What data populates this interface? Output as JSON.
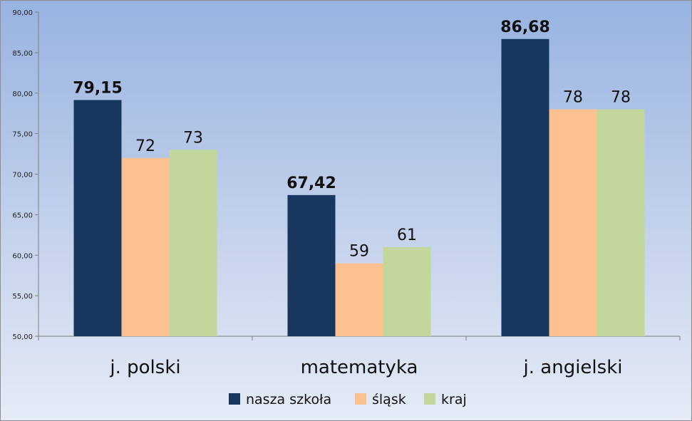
{
  "chart_data": {
    "type": "bar",
    "categories": [
      "j. polski",
      "matematyka",
      "j. angielski"
    ],
    "series": [
      {
        "name": "nasza szkoła",
        "values": [
          79.15,
          67.42,
          86.68
        ],
        "labels": [
          "79,15",
          "67,42",
          "86,68"
        ],
        "color": "#17375e"
      },
      {
        "name": "śląsk",
        "values": [
          72,
          59,
          78
        ],
        "labels": [
          "72",
          "59",
          "78"
        ],
        "color": "#fac090"
      },
      {
        "name": "kraj",
        "values": [
          73,
          61,
          78
        ],
        "labels": [
          "73",
          "61",
          "78"
        ],
        "color": "#c3d69b"
      }
    ],
    "ylim": [
      50,
      90
    ],
    "yticks": [
      50,
      55,
      60,
      65,
      70,
      75,
      80,
      85,
      90
    ],
    "ytick_labels": [
      "50,00",
      "55,00",
      "60,00",
      "65,00",
      "70,00",
      "75,00",
      "80,00",
      "85,00",
      "90,00"
    ],
    "title": "",
    "xlabel": "",
    "ylabel": "",
    "grid": false,
    "legend": "bottom"
  }
}
